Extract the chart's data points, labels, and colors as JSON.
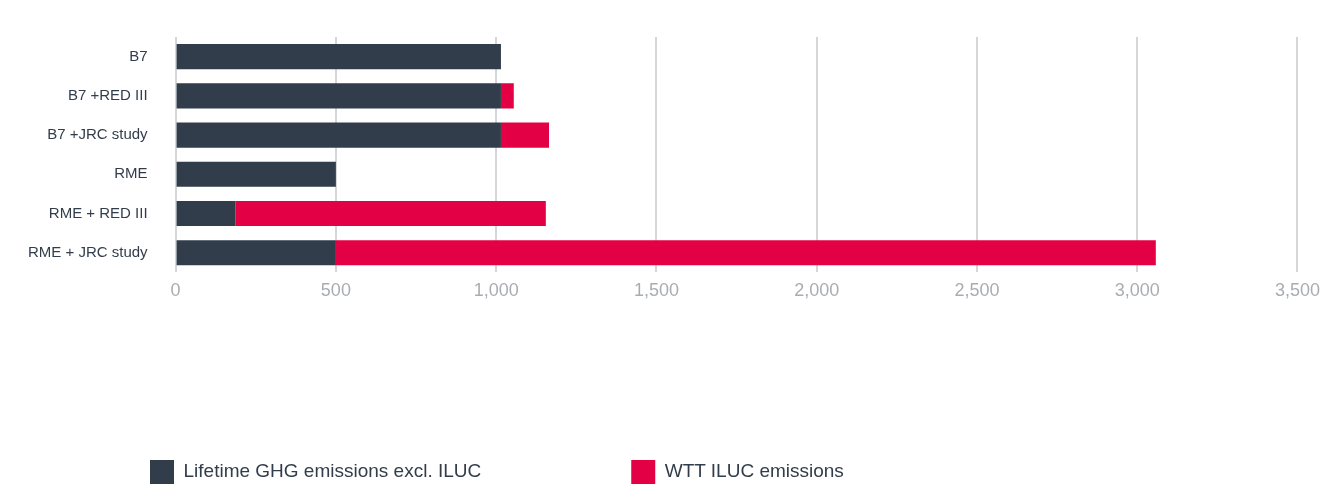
{
  "chart_data": {
    "type": "bar",
    "orientation": "horizontal",
    "stacked": true,
    "categories": [
      "B7",
      "B7 +RED III",
      "B7 +JRC study",
      "RME",
      "RME + RED III",
      "RME + JRC study"
    ],
    "series": [
      {
        "name": "Lifetime GHG emissions excl. ILUC",
        "color": "#323d4b",
        "values": [
          1015,
          1015,
          1015,
          500,
          187,
          500
        ]
      },
      {
        "name": "WTT ILUC emissions",
        "color": "#e30045",
        "values": [
          null,
          40,
          150,
          null,
          968,
          2558
        ]
      }
    ],
    "xlim": [
      0,
      3500
    ],
    "xticks": [
      {
        "value": 0,
        "label": "0"
      },
      {
        "value": 500,
        "label": "500"
      },
      {
        "value": 1000,
        "label": "1,000"
      },
      {
        "value": 1500,
        "label": "1,500"
      },
      {
        "value": 2000,
        "label": "2,000"
      },
      {
        "value": 2500,
        "label": "2,500"
      },
      {
        "value": 3000,
        "label": "3,000"
      },
      {
        "value": 3500,
        "label": "3,500"
      }
    ],
    "grid": "x",
    "legend": "bottom left"
  }
}
